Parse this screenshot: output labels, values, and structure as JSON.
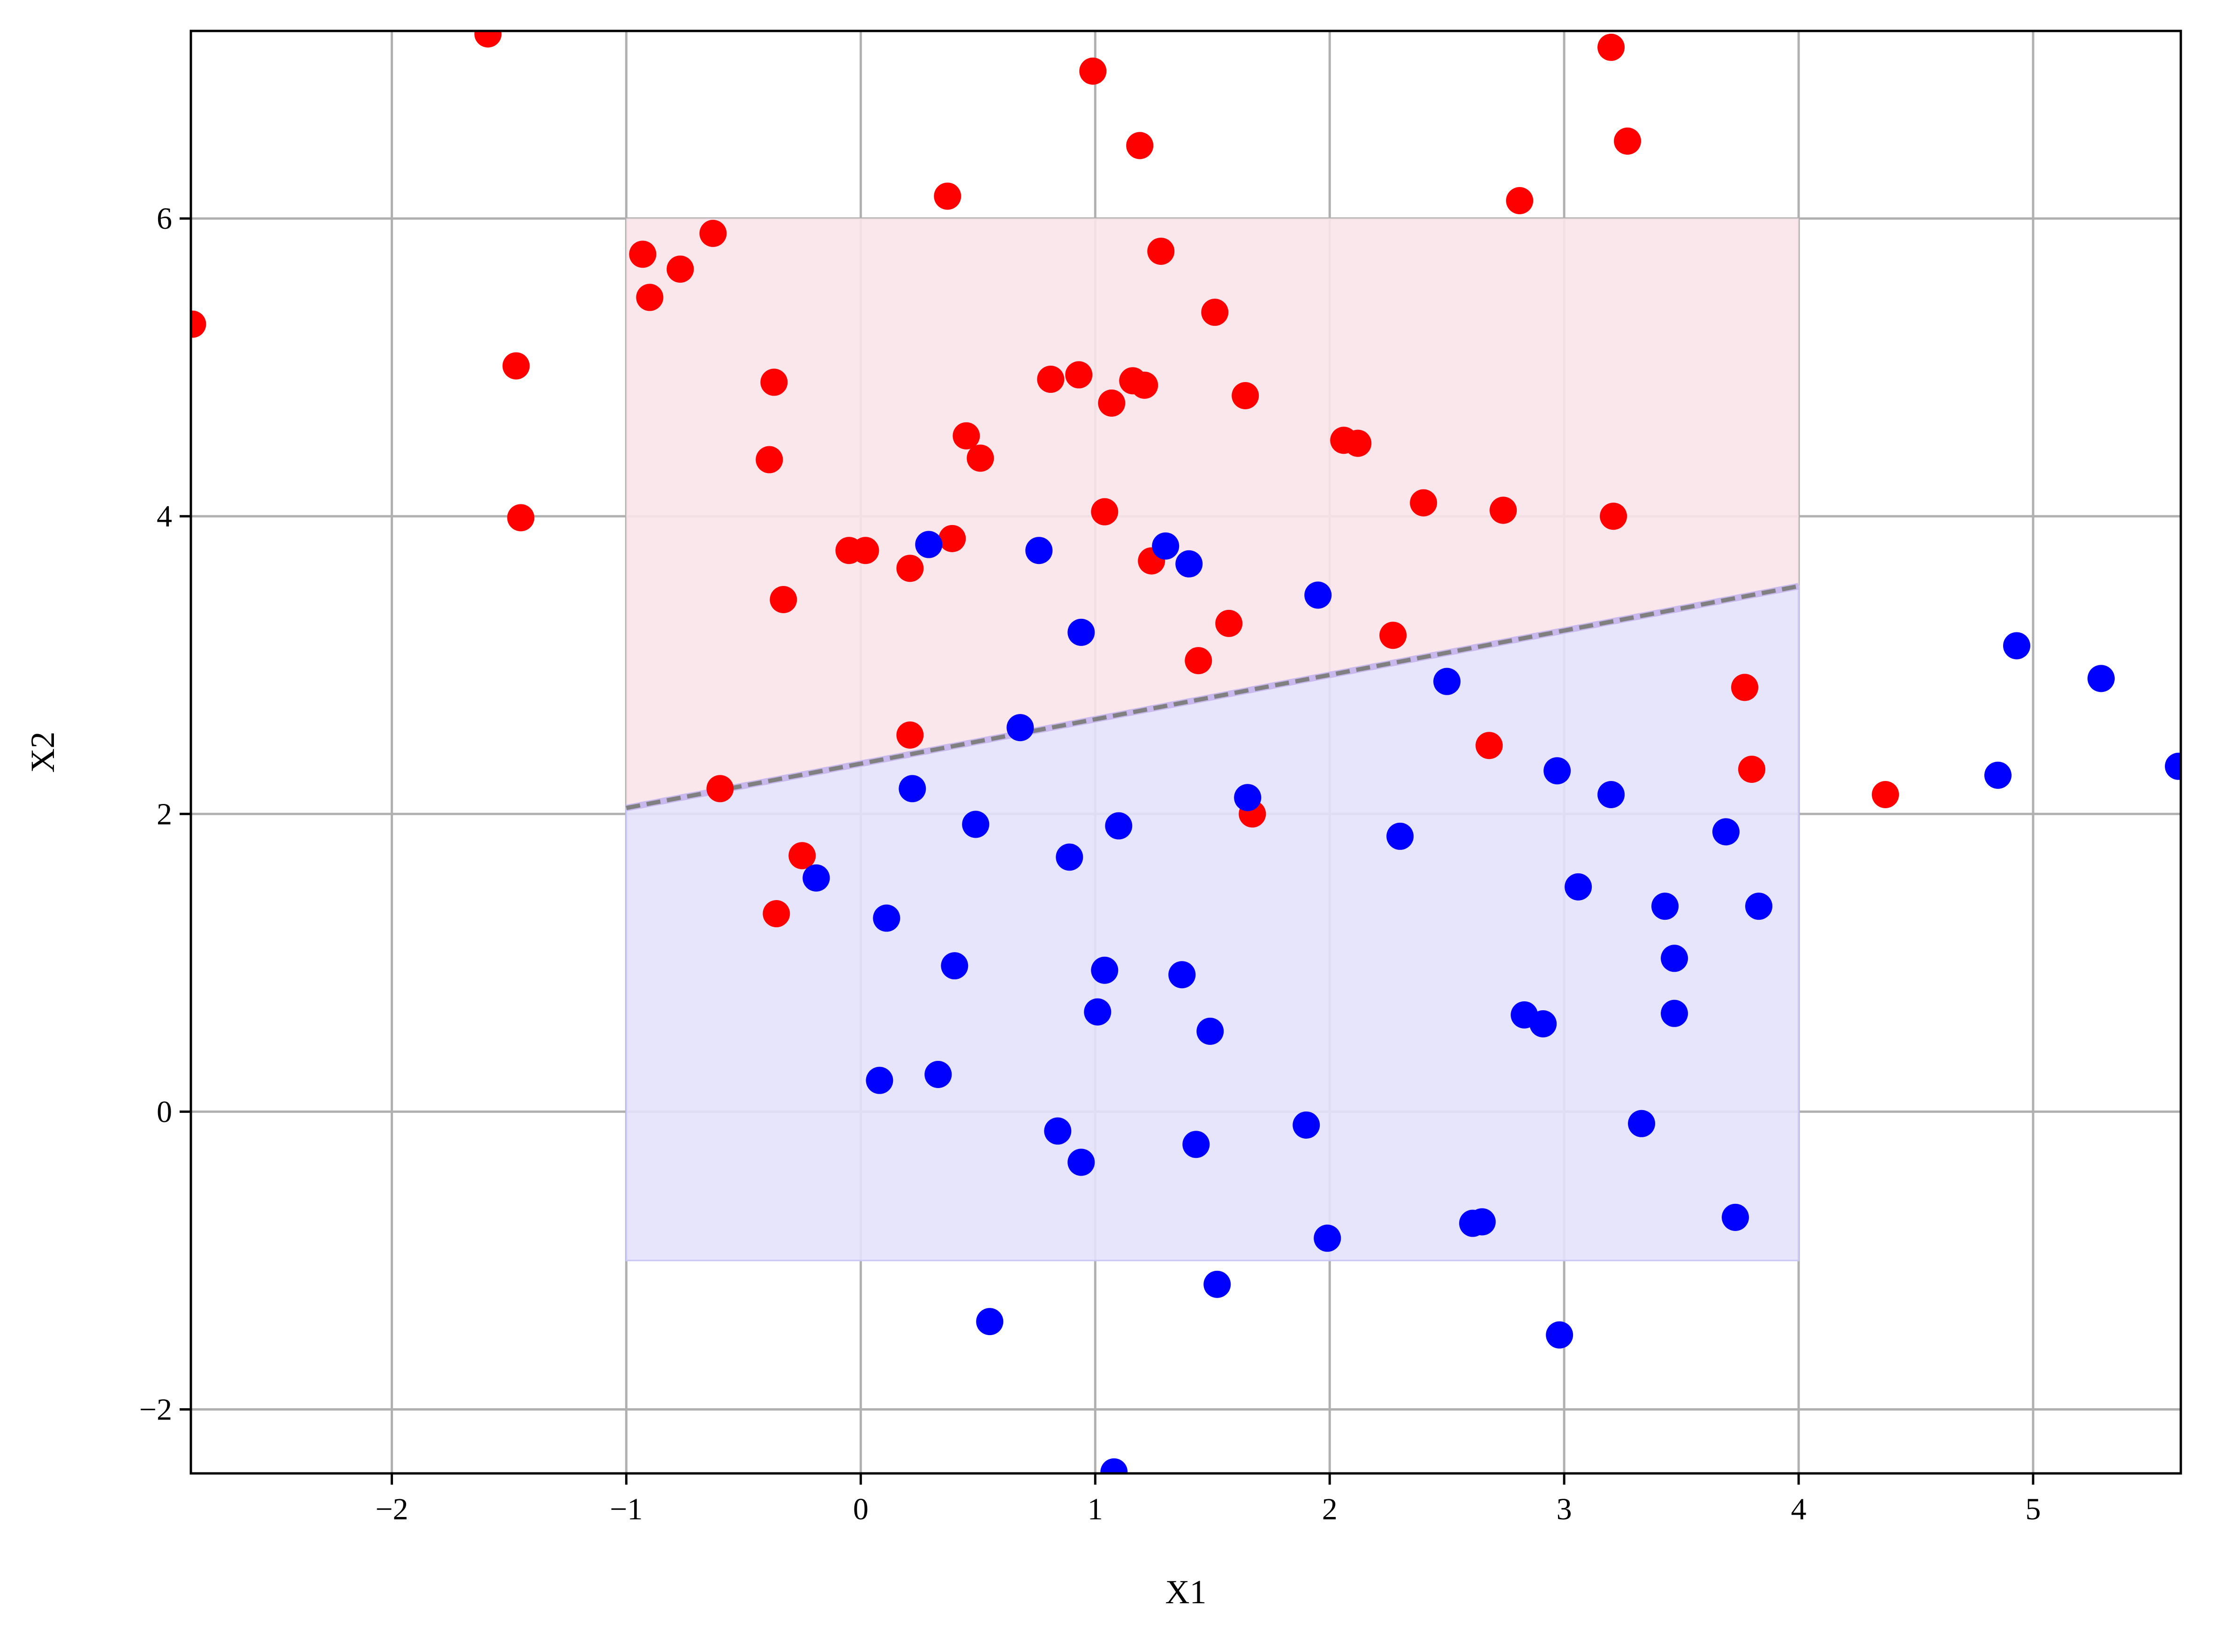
{
  "chart_data": {
    "type": "scatter",
    "title": "",
    "xlabel": "X1",
    "ylabel": "X2",
    "xlim": [
      -2.857,
      5.63
    ],
    "ylim": [
      -2.43,
      7.26
    ],
    "xticks": [
      -2,
      -1,
      0,
      1,
      2,
      3,
      4,
      5
    ],
    "yticks": [
      -2,
      0,
      2,
      4,
      6
    ],
    "xtick_labels": [
      "−2",
      "−1",
      "0",
      "1",
      "2",
      "3",
      "4",
      "5"
    ],
    "ytick_labels": [
      "−2",
      "0",
      "2",
      "4",
      "6"
    ],
    "grid": true,
    "legend": null,
    "colors": {
      "red": "#ff0000",
      "blue": "#0000ff",
      "red_region": "#f9e4ea",
      "blue_region": "#e4e2fb",
      "boundary": "#808080",
      "grid": "#b0b0b0"
    },
    "regions": [
      {
        "name": "red-region",
        "x": [
          -1,
          4
        ],
        "y_bottom_line": [
          [
            -1,
            2.04
          ],
          [
            4,
            3.53
          ]
        ],
        "y_top": 6,
        "color": "#f9e4ea"
      },
      {
        "name": "blue-region",
        "x": [
          -1,
          4
        ],
        "y_bottom": -1,
        "y_top_line": [
          [
            -1,
            2.04
          ],
          [
            4,
            3.53
          ]
        ],
        "color": "#e4e2fb"
      }
    ],
    "boundary_line": {
      "style": "dashed",
      "color": "#808080",
      "points": [
        [
          -1,
          2.04
        ],
        [
          4,
          3.53
        ]
      ]
    },
    "series": [
      {
        "name": "red",
        "color": "#ff0000",
        "points": [
          [
            -2.85,
            5.29
          ],
          [
            -1.59,
            7.24
          ],
          [
            -1.47,
            5.01
          ],
          [
            -1.45,
            3.99
          ],
          [
            -0.93,
            5.76
          ],
          [
            -0.9,
            5.47
          ],
          [
            -0.77,
            5.66
          ],
          [
            -0.63,
            5.9
          ],
          [
            -0.37,
            4.9
          ],
          [
            -0.39,
            4.38
          ],
          [
            -0.33,
            3.44
          ],
          [
            -0.6,
            2.17
          ],
          [
            -0.25,
            1.72
          ],
          [
            -0.36,
            1.33
          ],
          [
            -0.05,
            3.77
          ],
          [
            0.02,
            3.77
          ],
          [
            0.21,
            3.65
          ],
          [
            0.39,
            3.85
          ],
          [
            0.37,
            6.15
          ],
          [
            0.45,
            4.54
          ],
          [
            0.51,
            4.39
          ],
          [
            0.21,
            2.53
          ],
          [
            0.99,
            6.99
          ],
          [
            1.19,
            6.49
          ],
          [
            0.81,
            4.92
          ],
          [
            0.93,
            4.95
          ],
          [
            1.07,
            4.76
          ],
          [
            1.16,
            4.91
          ],
          [
            1.21,
            4.88
          ],
          [
            1.28,
            5.78
          ],
          [
            1.51,
            5.37
          ],
          [
            1.64,
            4.81
          ],
          [
            1.04,
            4.03
          ],
          [
            1.24,
            3.7
          ],
          [
            1.57,
            3.28
          ],
          [
            1.44,
            3.03
          ],
          [
            2.06,
            4.51
          ],
          [
            2.12,
            4.49
          ],
          [
            2.4,
            4.09
          ],
          [
            2.27,
            3.2
          ],
          [
            2.74,
            4.04
          ],
          [
            2.81,
            6.12
          ],
          [
            3.2,
            7.15
          ],
          [
            3.27,
            6.52
          ],
          [
            3.21,
            4.0
          ],
          [
            2.68,
            2.46
          ],
          [
            1.67,
            2.0
          ],
          [
            3.77,
            2.85
          ],
          [
            3.8,
            2.3
          ],
          [
            4.37,
            2.13
          ]
        ]
      },
      {
        "name": "blue",
        "color": "#0000ff",
        "points": [
          [
            0.29,
            3.81
          ],
          [
            0.76,
            3.77
          ],
          [
            0.94,
            3.22
          ],
          [
            1.3,
            3.8
          ],
          [
            1.4,
            3.68
          ],
          [
            1.95,
            3.47
          ],
          [
            0.68,
            2.58
          ],
          [
            0.22,
            2.17
          ],
          [
            0.49,
            1.93
          ],
          [
            1.1,
            1.92
          ],
          [
            0.89,
            1.71
          ],
          [
            1.65,
            2.11
          ],
          [
            2.5,
            2.89
          ],
          [
            2.3,
            1.85
          ],
          [
            2.97,
            2.29
          ],
          [
            3.2,
            2.13
          ],
          [
            3.69,
            1.88
          ],
          [
            3.06,
            1.51
          ],
          [
            3.43,
            1.38
          ],
          [
            3.83,
            1.38
          ],
          [
            3.47,
            1.03
          ],
          [
            3.47,
            0.66
          ],
          [
            -0.19,
            1.57
          ],
          [
            0.11,
            1.3
          ],
          [
            0.4,
            0.98
          ],
          [
            1.04,
            0.95
          ],
          [
            1.37,
            0.92
          ],
          [
            1.01,
            0.67
          ],
          [
            1.49,
            0.54
          ],
          [
            2.83,
            0.65
          ],
          [
            2.91,
            0.59
          ],
          [
            0.08,
            0.21
          ],
          [
            0.33,
            0.25
          ],
          [
            0.84,
            -0.13
          ],
          [
            0.94,
            -0.34
          ],
          [
            1.43,
            -0.22
          ],
          [
            1.9,
            -0.09
          ],
          [
            3.33,
            -0.08
          ],
          [
            2.61,
            -0.75
          ],
          [
            2.65,
            -0.74
          ],
          [
            3.73,
            -0.71
          ],
          [
            1.99,
            -0.85
          ],
          [
            1.52,
            -1.16
          ],
          [
            0.55,
            -1.41
          ],
          [
            2.98,
            -1.5
          ],
          [
            1.08,
            -2.42
          ],
          [
            4.85,
            2.26
          ],
          [
            4.93,
            3.13
          ],
          [
            5.29,
            2.91
          ],
          [
            5.62,
            2.32
          ]
        ]
      }
    ]
  }
}
